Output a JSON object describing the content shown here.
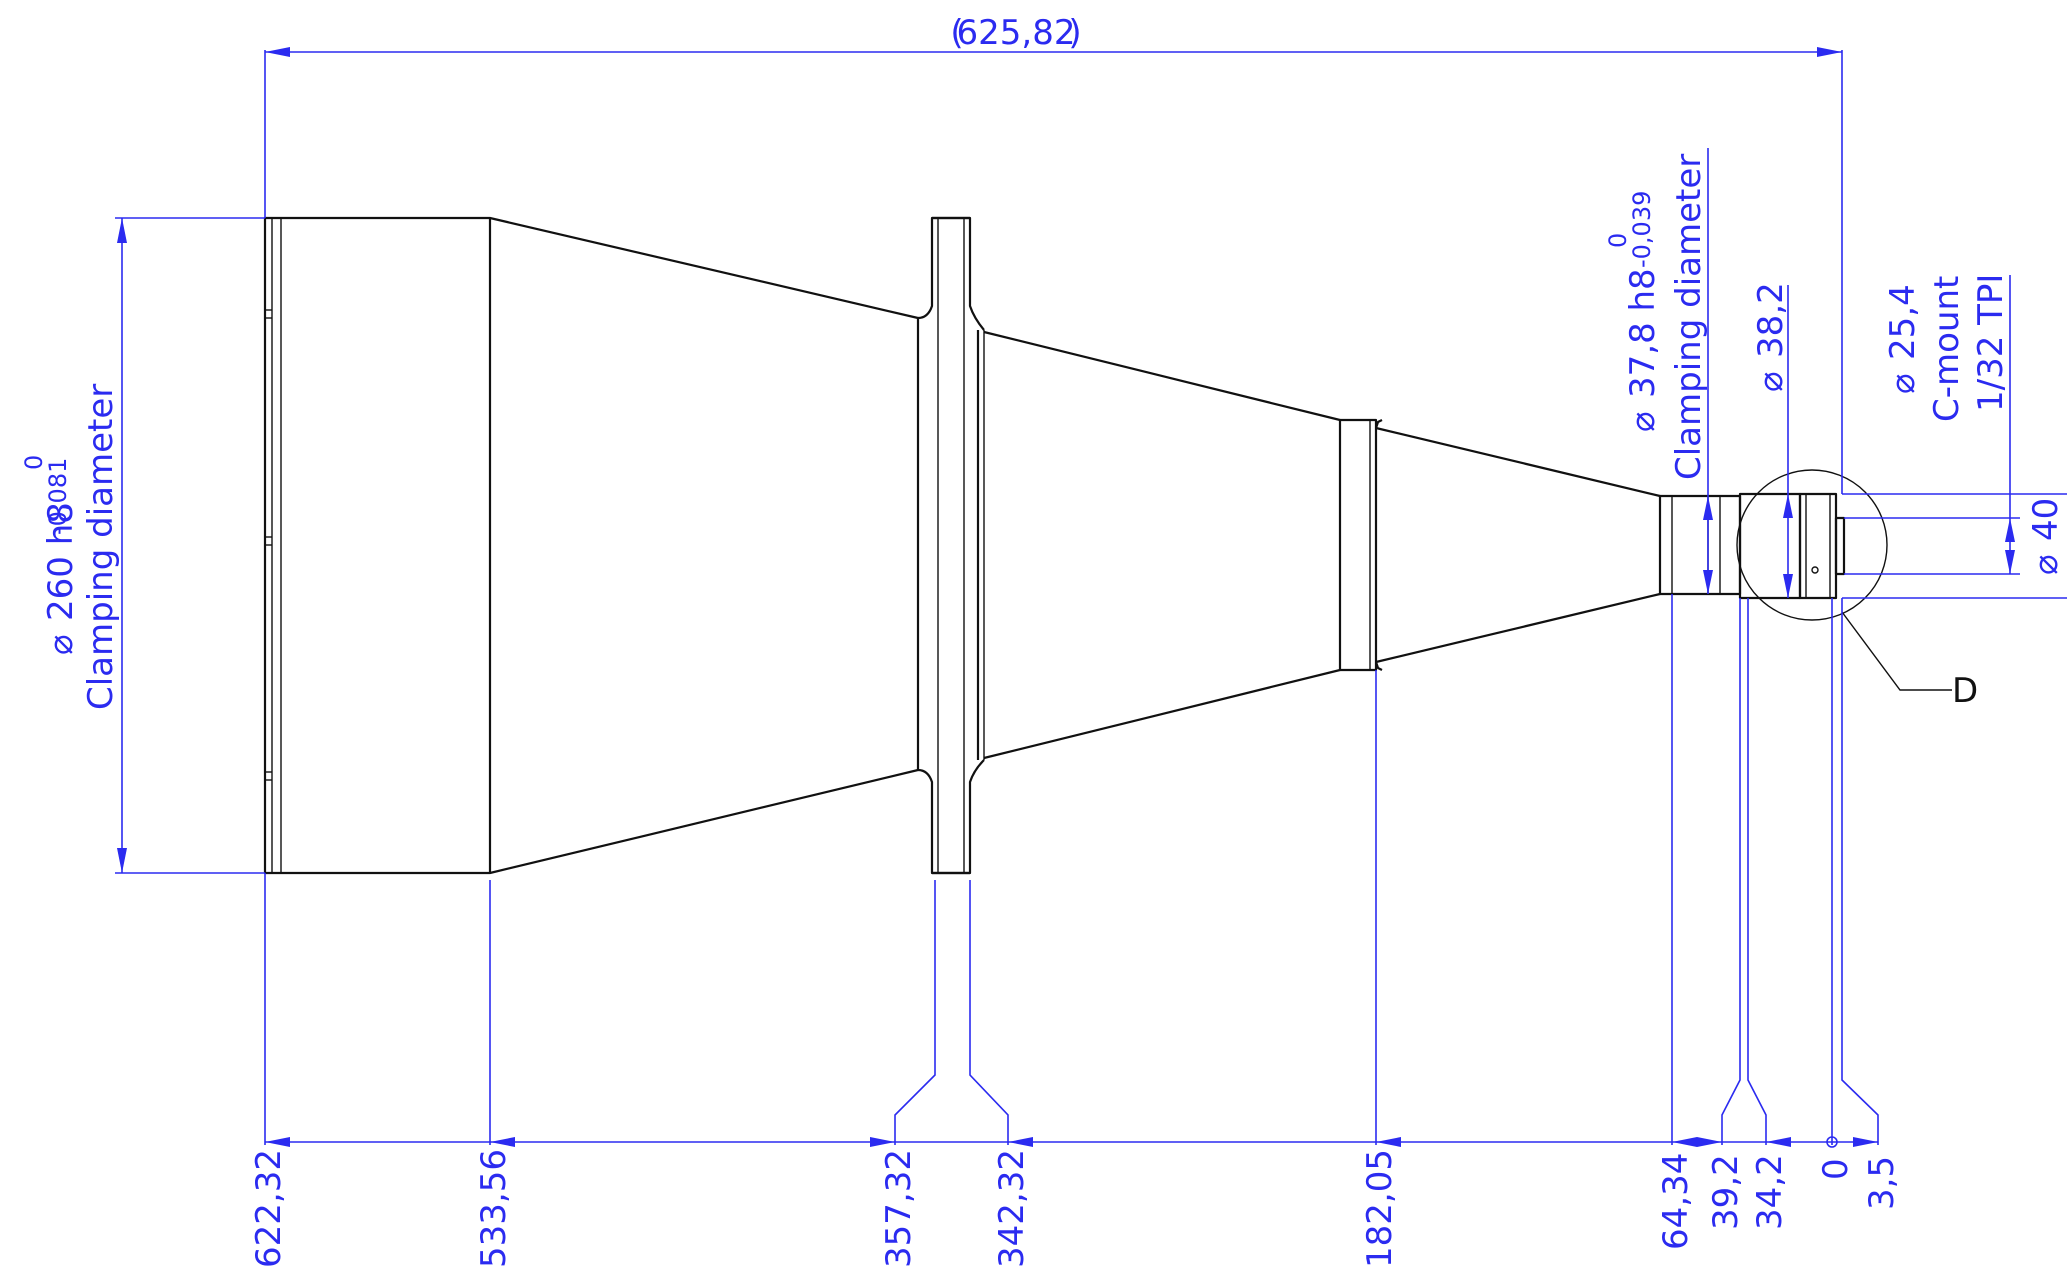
{
  "dimensions": {
    "overall_length": "625,82",
    "main_diameter": {
      "value": "260 h8",
      "tol_upper": "0",
      "tol_lower": "-0,081",
      "label": "Clamping diameter"
    },
    "mid_diameter": {
      "value": "37,8 h8",
      "tol_upper": "0",
      "tol_lower": "-0,039",
      "label": "Clamping diameter"
    },
    "small_diameter": "38,2",
    "mount_diameter": {
      "value": "25,4",
      "line2": "C-mount",
      "line3": "1/32 TPI"
    },
    "end_diameter": "40",
    "diameter_symbol": "⌀",
    "positions": [
      "622,32",
      "533,56",
      "357,32",
      "342,32",
      "182,05",
      "64,34",
      "39,2",
      "34,2",
      "0",
      "3,5"
    ]
  },
  "detail_callout": "D"
}
